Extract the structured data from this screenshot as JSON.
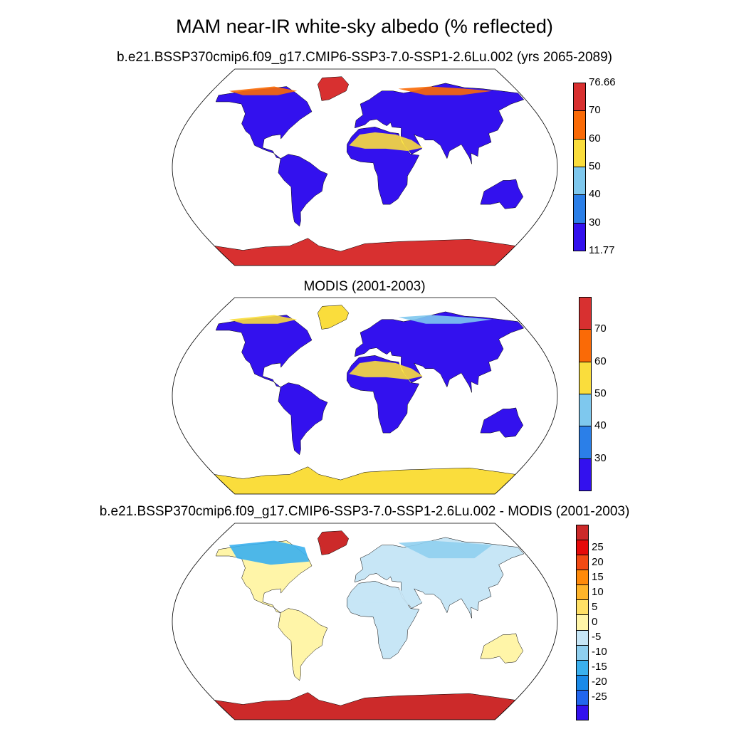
{
  "title": "MAM near-IR white-sky albedo (% reflected)",
  "panels": [
    {
      "subtitle": "b.e21.BSSP370cmip6.f09_g17.CMIP6-SSP3-7.0-SSP1-2.6Lu.002 (yrs 2065-2089)",
      "colorbar": {
        "colors": [
          "#3311ee",
          "#2b7fe8",
          "#7ec8ee",
          "#fadd3c",
          "#fa6a06",
          "#d83030"
        ],
        "labels": [
          "11.77",
          "30",
          "40",
          "50",
          "60",
          "70",
          "76.66"
        ]
      }
    },
    {
      "subtitle": "MODIS (2001-2003)",
      "colorbar": {
        "colors": [
          "#3311ee",
          "#2b7fe8",
          "#7ec8ee",
          "#fadd3c",
          "#fa6a06",
          "#d83030"
        ],
        "labels": [
          "30",
          "40",
          "50",
          "60",
          "70"
        ]
      }
    },
    {
      "subtitle": "b.e21.BSSP370cmip6.f09_g17.CMIP6-SSP3-7.0-SSP1-2.6Lu.002 - MODIS (2001-2003)",
      "colorbar": {
        "colors": [
          "#3311ee",
          "#2266ee",
          "#1a8ae8",
          "#3ab0ee",
          "#8fcfef",
          "#c7e6f6",
          "#fff5a8",
          "#ffe066",
          "#ffb52a",
          "#ff8a0a",
          "#f24a14",
          "#e60a0a",
          "#cc2a2a"
        ],
        "labels": [
          "-25",
          "-20",
          "-15",
          "-10",
          "-5",
          "0",
          "5",
          "10",
          "15",
          "20",
          "25"
        ]
      }
    }
  ]
}
